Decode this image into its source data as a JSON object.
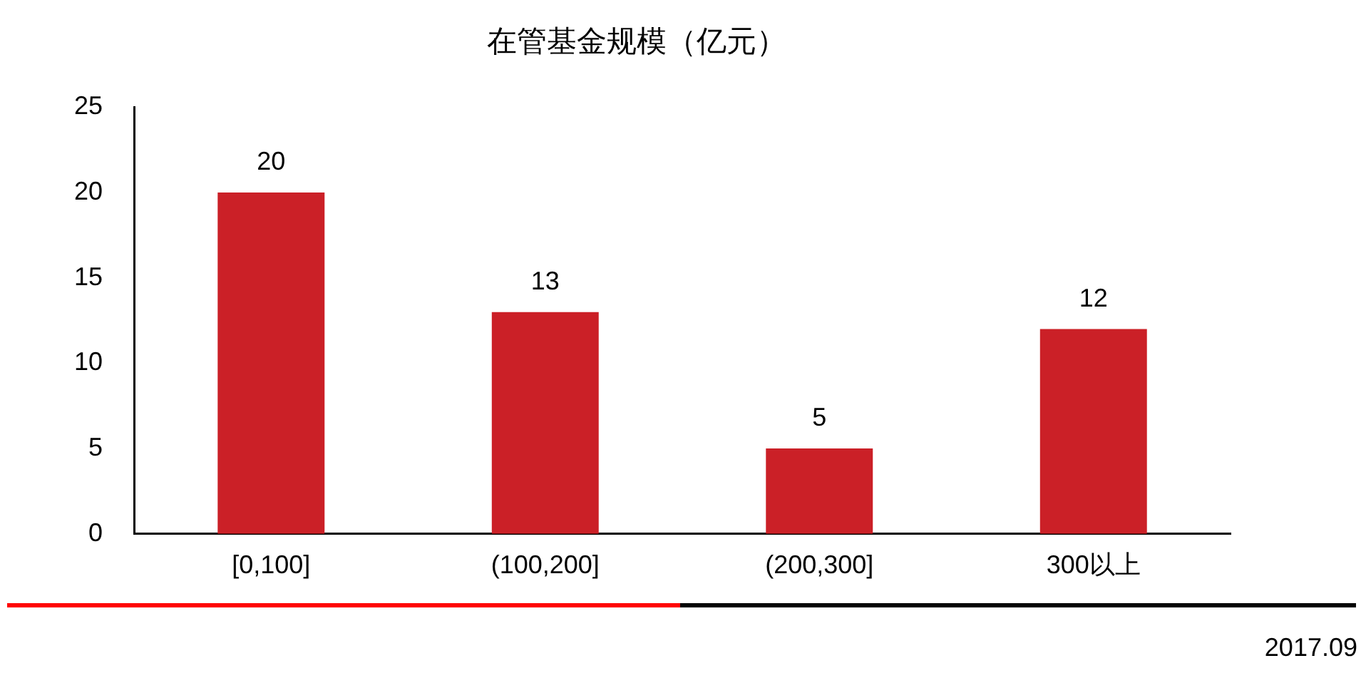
{
  "chart_data": {
    "type": "bar",
    "title": "在管基金规模（亿元）",
    "categories": [
      "[0,100]",
      "(100,200]",
      "(200,300]",
      "300以上"
    ],
    "values": [
      20,
      13,
      5,
      12
    ],
    "color": "#cb2027",
    "ylim": [
      0,
      25
    ],
    "yticks": [
      0,
      5,
      10,
      15,
      20,
      25
    ],
    "grid": false,
    "data_labels": true,
    "annotations": [
      "2017.09"
    ]
  }
}
